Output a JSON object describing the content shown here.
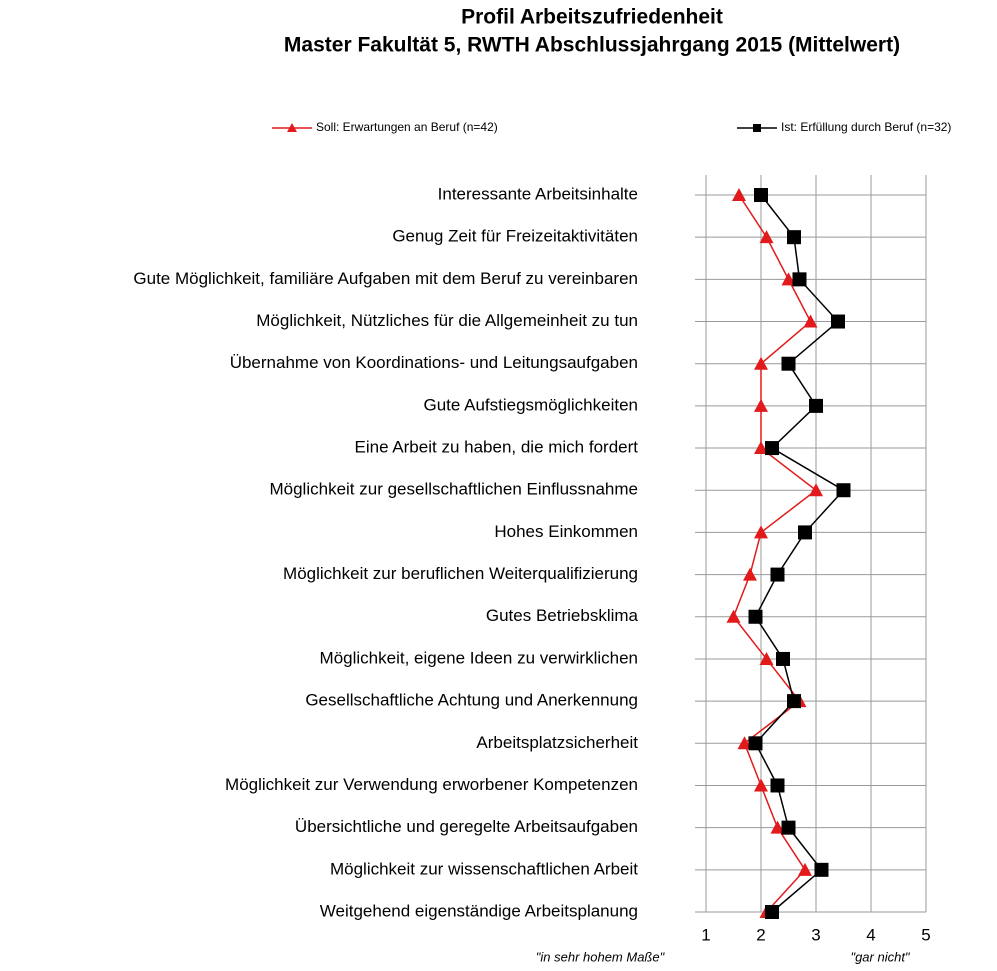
{
  "chart_data": {
    "type": "line",
    "orientation": "horizontal",
    "title": "Profil Arbeitszufriedenheit",
    "subtitle": "Master Fakultät 5, RWTH Abschlussjahrgang 2015 (Mittelwert)",
    "categories": [
      "Interessante Arbeitsinhalte",
      "Genug Zeit für Freizeitaktivitäten",
      "Gute Möglichkeit, familiäre Aufgaben mit dem Beruf zu vereinbaren",
      "Möglichkeit, Nützliches für die Allgemeinheit zu tun",
      "Übernahme von Koordinations- und Leitungsaufgaben",
      "Gute Aufstiegsmöglichkeiten",
      "Eine Arbeit zu haben, die mich fordert",
      "Möglichkeit zur gesellschaftlichen Einflussnahme",
      "Hohes Einkommen",
      "Möglichkeit zur beruflichen Weiterqualifizierung",
      "Gutes Betriebsklima",
      "Möglichkeit, eigene Ideen zu verwirklichen",
      "Gesellschaftliche Achtung und Anerkennung",
      "Arbeitsplatzsicherheit",
      "Möglichkeit zur Verwendung erworbener Kompetenzen",
      "Übersichtliche und geregelte Arbeitsaufgaben",
      "Möglichkeit zur wissenschaftlichen Arbeit",
      "Weitgehend eigenständige Arbeitsplanung"
    ],
    "series": [
      {
        "name": "Soll: Erwartungen an Beruf (n=42)",
        "color": "#e31a1c",
        "marker": "triangle",
        "values": [
          1.6,
          2.1,
          2.5,
          2.9,
          2.0,
          2.0,
          2.0,
          3.0,
          2.0,
          1.8,
          1.5,
          2.1,
          2.7,
          1.7,
          2.0,
          2.3,
          2.8,
          2.1
        ]
      },
      {
        "name": "Ist: Erfüllung durch Beruf (n=32)",
        "color": "#000000",
        "marker": "square",
        "values": [
          2.0,
          2.6,
          2.7,
          3.4,
          2.5,
          3.0,
          2.2,
          3.5,
          2.8,
          2.3,
          1.9,
          2.4,
          2.6,
          1.9,
          2.3,
          2.5,
          3.1,
          2.2
        ]
      }
    ],
    "xlim": [
      1,
      5
    ],
    "xticks": [
      1,
      2,
      3,
      4,
      5
    ],
    "grid": true,
    "annotations": [
      "\"in sehr hohem Maße\"",
      "\"gar nicht\""
    ]
  }
}
